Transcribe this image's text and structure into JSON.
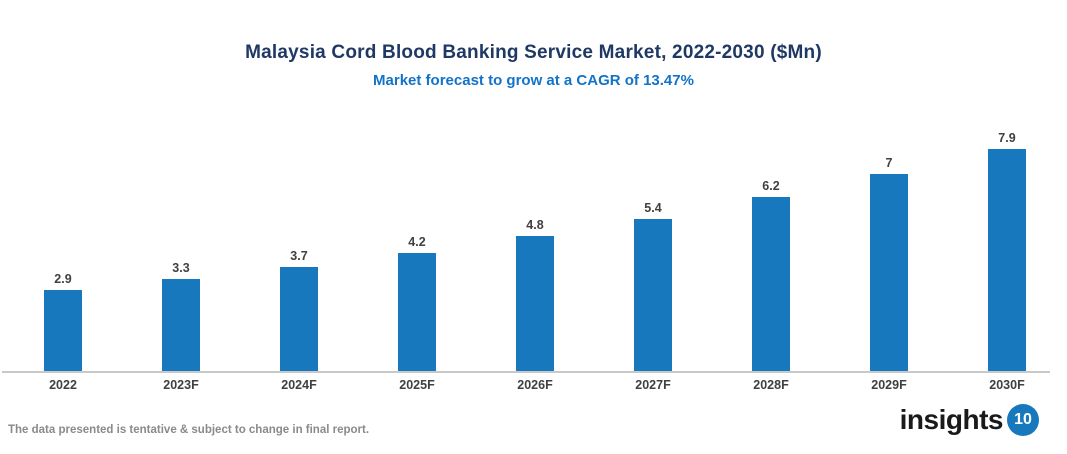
{
  "header": {
    "title": "Malaysia Cord Blood Banking Service Market, 2022-2030 ($Mn)",
    "subtitle": "Market forecast to grow at a CAGR of 13.47%"
  },
  "chart_data": {
    "type": "bar",
    "title": "Malaysia Cord Blood Banking Service Market, 2022-2030 ($Mn)",
    "subtitle": "Market forecast to grow at a CAGR of 13.47%",
    "categories": [
      "2022",
      "2023F",
      "2024F",
      "2025F",
      "2026F",
      "2027F",
      "2028F",
      "2029F",
      "2030F"
    ],
    "values": [
      2.9,
      3.3,
      3.7,
      4.2,
      4.8,
      5.4,
      6.2,
      7,
      7.9
    ],
    "value_labels": [
      "2.9",
      "3.3",
      "3.7",
      "4.2",
      "4.8",
      "5.4",
      "6.2",
      "7",
      "7.9"
    ],
    "xlabel": "",
    "ylabel": "",
    "ylim": [
      0,
      8
    ],
    "grid": false,
    "legend": "none",
    "bar_color": "#1878BE",
    "value_label_color": "#404040",
    "axis_line_color": "#C8C8C8"
  },
  "footer": {
    "disclaimer": "The data presented is tentative & subject to change in final report.",
    "logo": {
      "text": "insights",
      "badge": "10"
    }
  },
  "colors": {
    "title": "#1F3864",
    "subtitle": "#1273C8",
    "bar": "#1878BE",
    "axis_line": "#C8C8C8",
    "label": "#404040",
    "footer_text": "#8A8A8A",
    "logo_text": "#1A1A1A",
    "logo_badge_bg": "#1878BE",
    "logo_badge_text": "#FFFFFF"
  }
}
